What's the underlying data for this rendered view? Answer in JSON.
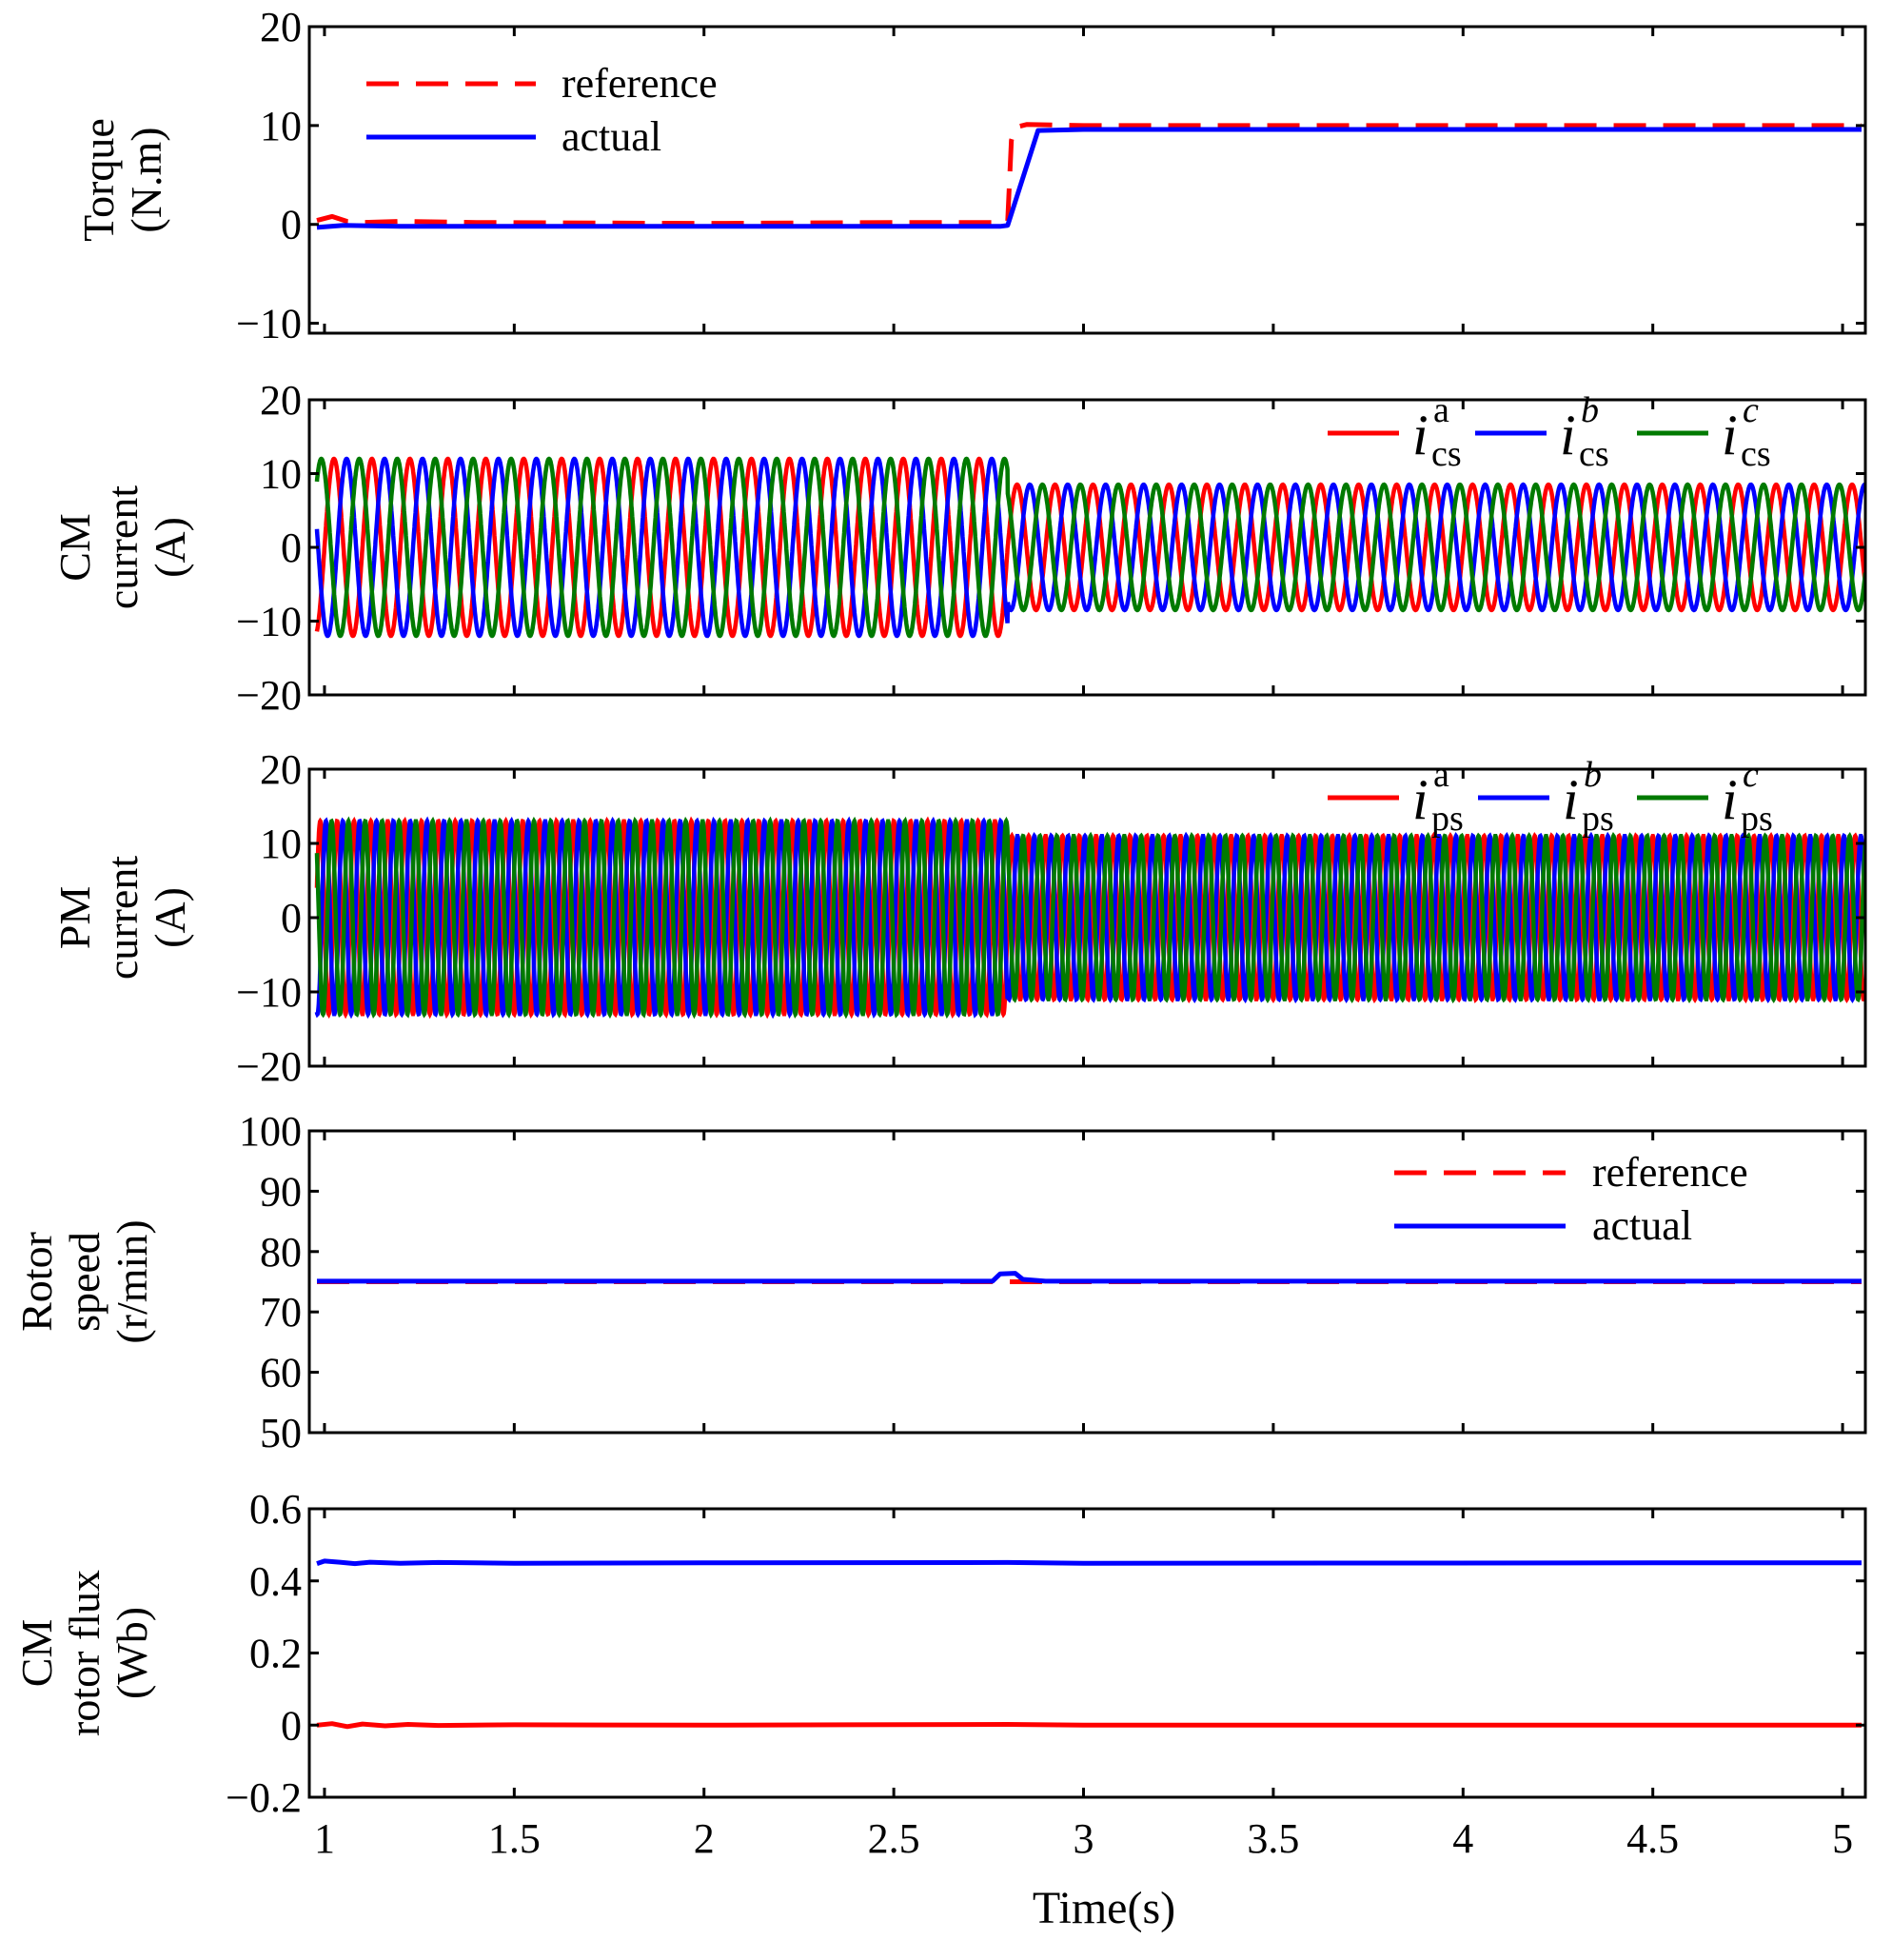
{
  "xaxis": {
    "label": "Time(s)",
    "ticks": [
      1,
      1.5,
      2,
      2.5,
      3,
      3.5,
      4,
      4.5,
      5
    ],
    "tick_labels": [
      "1",
      "1.5",
      "2",
      "2.5",
      "3",
      "3.5",
      "4",
      "4.5",
      "5"
    ],
    "xlim": [
      0.96,
      5.06
    ]
  },
  "colors": {
    "red": "#ff0000",
    "blue": "#0000ff",
    "green": "#007a00"
  },
  "chart_data": [
    {
      "type": "line",
      "id": "torque",
      "ylabel_lines": [
        "Torque",
        "(N.m)"
      ],
      "ylim": [
        -11,
        20
      ],
      "yticks": [
        -10,
        0,
        10,
        20
      ],
      "ytick_labels": [
        "−10",
        "0",
        "10",
        "20"
      ],
      "legend": {
        "placement": "top-left",
        "entries": [
          {
            "label": "reference",
            "style": "dashed",
            "color": "red"
          },
          {
            "label": "actual",
            "style": "solid",
            "color": "blue"
          }
        ]
      },
      "series": [
        {
          "name": "reference",
          "color": "red",
          "dash": true,
          "points": [
            [
              0.98,
              0.4
            ],
            [
              1.02,
              0.8
            ],
            [
              1.06,
              0.3
            ],
            [
              1.1,
              0.2
            ],
            [
              1.2,
              0.3
            ],
            [
              1.4,
              0.2
            ],
            [
              2.0,
              0.1
            ],
            [
              2.5,
              0.2
            ],
            [
              2.79,
              0.2
            ],
            [
              2.8,
              0.3
            ],
            [
              2.81,
              8.5
            ],
            [
              2.82,
              9.8
            ],
            [
              2.85,
              10.1
            ],
            [
              3.0,
              10.0
            ],
            [
              5.05,
              10.0
            ]
          ]
        },
        {
          "name": "actual",
          "color": "blue",
          "dash": false,
          "points": [
            [
              0.98,
              -0.3
            ],
            [
              1.05,
              -0.1
            ],
            [
              1.2,
              -0.2
            ],
            [
              2.0,
              -0.2
            ],
            [
              2.78,
              -0.2
            ],
            [
              2.8,
              -0.1
            ],
            [
              2.88,
              9.5
            ],
            [
              3.0,
              9.6
            ],
            [
              5.05,
              9.6
            ]
          ]
        }
      ]
    },
    {
      "type": "line",
      "id": "cm_current",
      "ylabel_lines": [
        "CM",
        "current",
        "(A)"
      ],
      "ylim": [
        -20,
        20
      ],
      "yticks": [
        -20,
        -10,
        0,
        10,
        20
      ],
      "ytick_labels": [
        "−20",
        "−10",
        "0",
        "10",
        "20"
      ],
      "legend": {
        "placement": "top-right",
        "entries": [
          {
            "symbol": "i",
            "sup": "a",
            "sub": "cs",
            "color": "red"
          },
          {
            "symbol": "i",
            "sup": "b",
            "sub": "cs",
            "color": "blue"
          },
          {
            "symbol": "i",
            "sup": "c",
            "sub": "cs",
            "color": "green"
          }
        ]
      },
      "signal": {
        "kind": "three_phase_sine",
        "frequency_hz": 10,
        "amplitude_before": 12,
        "amplitude_after": 8.5,
        "step_time": 2.8,
        "phase_order": [
          "red",
          "blue",
          "green"
        ]
      }
    },
    {
      "type": "line",
      "id": "pm_current",
      "ylabel_lines": [
        "PM",
        "current",
        "(A)"
      ],
      "ylim": [
        -20,
        20
      ],
      "yticks": [
        -20,
        -10,
        0,
        10,
        20
      ],
      "ytick_labels": [
        "−20",
        "−10",
        "0",
        "10",
        "20"
      ],
      "legend": {
        "placement": "top-right",
        "entries": [
          {
            "symbol": "i",
            "sup": "a",
            "sub": "ps",
            "color": "red"
          },
          {
            "symbol": "i",
            "sup": "b",
            "sub": "ps",
            "color": "blue"
          },
          {
            "symbol": "i",
            "sup": "c",
            "sub": "ps",
            "color": "green"
          }
        ]
      },
      "signal": {
        "kind": "three_phase_sine",
        "frequency_hz": 22.5,
        "amplitude_before": 13,
        "amplitude_after": 11,
        "step_time": 2.8,
        "phase_order": [
          "red",
          "blue",
          "green"
        ]
      }
    },
    {
      "type": "line",
      "id": "rotor_speed",
      "ylabel_lines": [
        "Rotor",
        "speed",
        "(r/min)"
      ],
      "ylim": [
        50,
        100
      ],
      "yticks": [
        50,
        60,
        70,
        80,
        90,
        100
      ],
      "ytick_labels": [
        "50",
        "60",
        "70",
        "80",
        "90",
        "100"
      ],
      "legend": {
        "placement": "top-right",
        "entries": [
          {
            "label": "reference",
            "style": "dashed",
            "color": "red"
          },
          {
            "label": "actual",
            "style": "solid",
            "color": "blue"
          }
        ]
      },
      "series": [
        {
          "name": "reference",
          "color": "red",
          "dash": true,
          "points": [
            [
              0.98,
              75
            ],
            [
              5.05,
              75
            ]
          ]
        },
        {
          "name": "actual",
          "color": "blue",
          "dash": false,
          "points": [
            [
              0.98,
              75.1
            ],
            [
              2.76,
              75.1
            ],
            [
              2.78,
              76.3
            ],
            [
              2.82,
              76.4
            ],
            [
              2.84,
              75.4
            ],
            [
              2.9,
              75.1
            ],
            [
              5.05,
              75.1
            ]
          ]
        }
      ]
    },
    {
      "type": "line",
      "id": "cm_rotor_flux",
      "ylabel_lines": [
        "CM",
        "rotor flux",
        "(Wb)"
      ],
      "ylim": [
        -0.2,
        0.6
      ],
      "yticks": [
        -0.2,
        0,
        0.2,
        0.4,
        0.6
      ],
      "ytick_labels": [
        "−0.2",
        "0",
        "0.2",
        "0.4",
        "0.6"
      ],
      "series": [
        {
          "name": "blue",
          "color": "blue",
          "dash": false,
          "points": [
            [
              0.98,
              0.448
            ],
            [
              1.0,
              0.455
            ],
            [
              1.04,
              0.452
            ],
            [
              1.08,
              0.448
            ],
            [
              1.12,
              0.452
            ],
            [
              1.2,
              0.449
            ],
            [
              1.3,
              0.451
            ],
            [
              1.5,
              0.449
            ],
            [
              2.0,
              0.45
            ],
            [
              2.8,
              0.451
            ],
            [
              3.0,
              0.449
            ],
            [
              4.5,
              0.45
            ],
            [
              5.05,
              0.45
            ]
          ]
        },
        {
          "name": "red",
          "color": "red",
          "dash": false,
          "points": [
            [
              0.98,
              0.0
            ],
            [
              1.02,
              0.004
            ],
            [
              1.06,
              -0.004
            ],
            [
              1.1,
              0.003
            ],
            [
              1.16,
              -0.002
            ],
            [
              1.22,
              0.002
            ],
            [
              1.3,
              -0.001
            ],
            [
              1.5,
              0.001
            ],
            [
              2.0,
              0.0
            ],
            [
              2.8,
              0.002
            ],
            [
              3.0,
              0.0
            ],
            [
              4.5,
              0.0
            ],
            [
              5.05,
              0.0
            ]
          ]
        }
      ]
    }
  ]
}
